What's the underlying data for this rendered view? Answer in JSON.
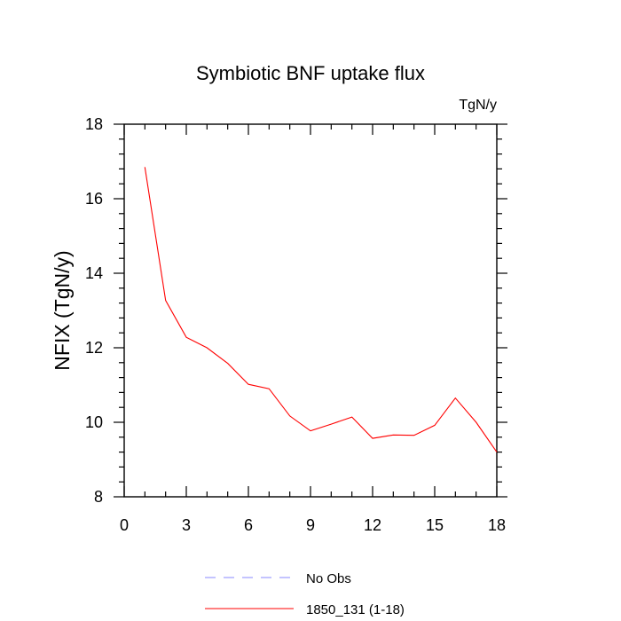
{
  "chart_data": {
    "type": "line",
    "title": "Symbiotic BNF uptake flux",
    "units_label": "TgN/y",
    "ylabel": "NFIX  (TgN/y)",
    "xlabel": "",
    "xlim": [
      0,
      18
    ],
    "ylim": [
      8,
      18
    ],
    "x_ticks": [
      "0",
      "3",
      "6",
      "9",
      "12",
      "15",
      "18"
    ],
    "y_ticks": [
      "8",
      "10",
      "12",
      "14",
      "16",
      "18"
    ],
    "grid": false,
    "legend_position": "bottom",
    "series": [
      {
        "name": "1850_131 (1-18)",
        "color": "#ff0000",
        "style": "solid",
        "x": [
          1,
          2,
          3,
          4,
          5,
          6,
          7,
          8,
          9,
          10,
          11,
          12,
          13,
          14,
          15,
          16,
          17,
          18
        ],
        "values": [
          16.85,
          13.27,
          12.28,
          12.0,
          11.58,
          11.02,
          10.9,
          10.17,
          9.77,
          9.95,
          10.14,
          9.57,
          9.66,
          9.65,
          9.92,
          10.65,
          10.0,
          9.2
        ]
      }
    ],
    "legend": [
      {
        "label": "No Obs",
        "color": "#8a8aff",
        "style": "dashed"
      },
      {
        "label": "1850_131 (1-18)",
        "color": "#ff0000",
        "style": "solid"
      }
    ]
  }
}
